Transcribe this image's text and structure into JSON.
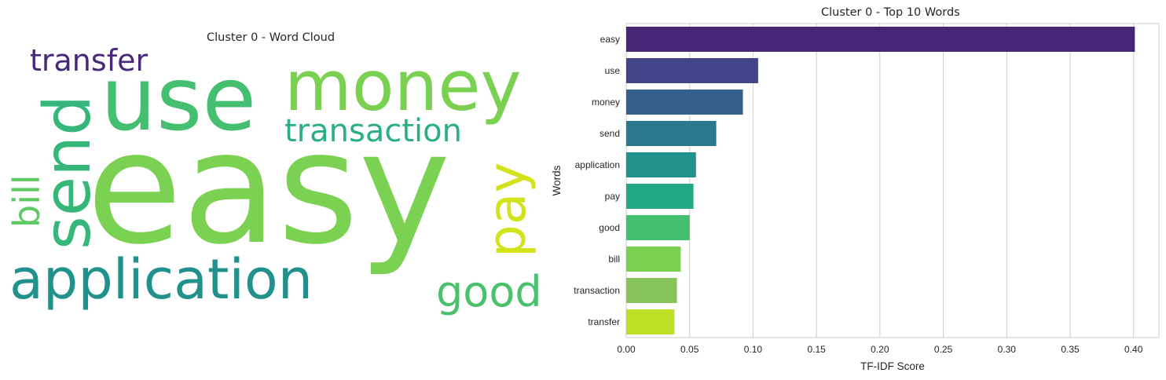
{
  "chart_data": [
    {
      "type": "wordcloud",
      "title": "Cluster 0 - Word Cloud",
      "words": [
        {
          "text": "easy",
          "color": "#7bd151"
        },
        {
          "text": "use",
          "color": "#44bf70"
        },
        {
          "text": "money",
          "color": "#7ad151"
        },
        {
          "text": "send",
          "color": "#35b779"
        },
        {
          "text": "application",
          "color": "#21918c"
        },
        {
          "text": "transaction",
          "color": "#2ab07f"
        },
        {
          "text": "pay",
          "color": "#d2e21b"
        },
        {
          "text": "good",
          "color": "#4ac16d"
        },
        {
          "text": "bill",
          "color": "#5ec962"
        },
        {
          "text": "transfer",
          "color": "#482878"
        }
      ]
    },
    {
      "type": "bar",
      "orientation": "horizontal",
      "title": "Cluster 0 - Top 10 Words",
      "xlabel": "TF-IDF Score",
      "ylabel": "Words",
      "categories": [
        "easy",
        "use",
        "money",
        "send",
        "application",
        "pay",
        "good",
        "bill",
        "transaction",
        "transfer"
      ],
      "values": [
        0.401,
        0.104,
        0.092,
        0.071,
        0.055,
        0.053,
        0.05,
        0.043,
        0.04,
        0.038
      ],
      "colors": [
        "#482475",
        "#414487",
        "#355f8d",
        "#2a788e",
        "#21918c",
        "#22a884",
        "#44bf70",
        "#7ad151",
        "#86c45a",
        "#bddf26"
      ],
      "xlim": [
        0,
        0.42
      ],
      "xticks": [
        "0.00",
        "0.05",
        "0.10",
        "0.15",
        "0.20",
        "0.25",
        "0.30",
        "0.35",
        "0.40"
      ],
      "grid": true
    }
  ]
}
